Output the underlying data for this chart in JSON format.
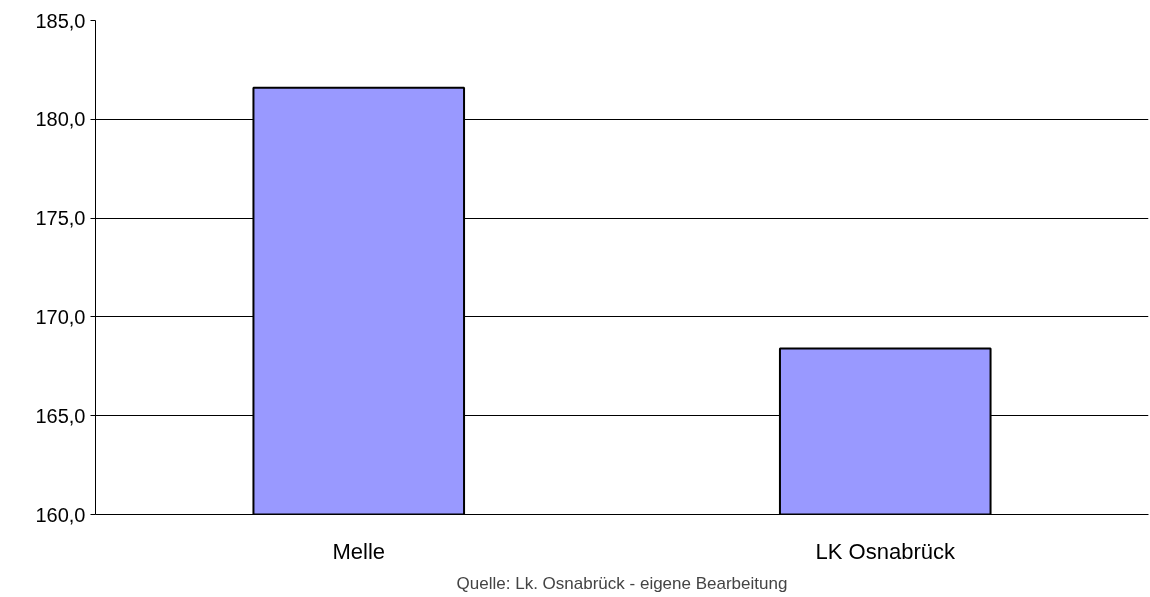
{
  "chart_data": {
    "type": "bar",
    "categories": [
      "Melle",
      "LK Osnabrück"
    ],
    "values": [
      181.6,
      168.4
    ],
    "color": "#9999ff",
    "ylim": [
      160,
      185
    ],
    "yticks": [
      {
        "value": 160,
        "label": "160,0"
      },
      {
        "value": 165,
        "label": "165,0"
      },
      {
        "value": 170,
        "label": "170,0"
      },
      {
        "value": 175,
        "label": "175,0"
      },
      {
        "value": 180,
        "label": "180,0"
      },
      {
        "value": 185,
        "label": "185,0"
      }
    ],
    "grid": "y",
    "annotations": [
      "Quelle: Lk. Osnabrück - eigene Bearbeitung"
    ]
  }
}
